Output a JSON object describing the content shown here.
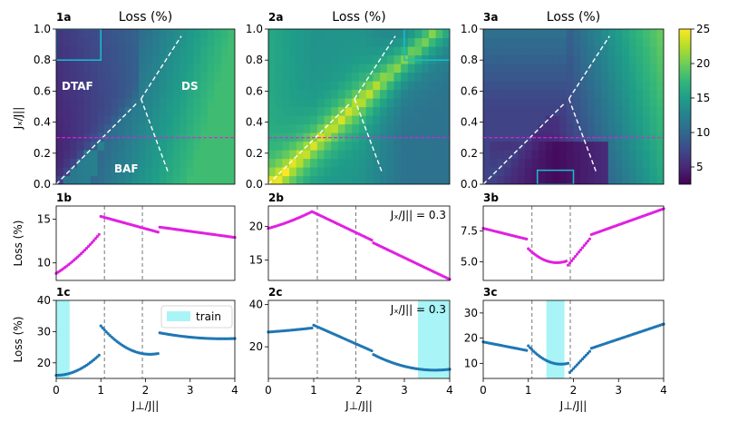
{
  "colors": {
    "magenta": "#e020e0",
    "blue": "#1f77b4",
    "cyan": "#17becf",
    "train": "#a8f4f6",
    "viridis": [
      "#440154",
      "#482878",
      "#3e4a89",
      "#31688e",
      "#26828e",
      "#1f9e89",
      "#35b779",
      "#6ece58",
      "#b5de2b",
      "#fde725"
    ]
  },
  "chart_data": {
    "type": "heatmap",
    "colorbar": {
      "min": 2.5,
      "max": 25,
      "ticks": [
        "5",
        "10",
        "15",
        "20",
        "25"
      ]
    },
    "heatmap_xlim": [
      0,
      4
    ],
    "heatmap_ylim": [
      0,
      1.0
    ],
    "heatmap_yticks": [
      "0.0",
      "0.2",
      "0.4",
      "0.6",
      "0.8",
      "1.0"
    ],
    "heatmap_ylabel": "Jₓ/J||",
    "cut_line_y": 0.3,
    "regions": [
      "DTAF",
      "DS",
      "BAF"
    ],
    "panels_a": [
      {
        "label": "1a",
        "title": "Loss (%)",
        "train_box": [
          0,
          0.8,
          1,
          1.0
        ]
      },
      {
        "label": "2a",
        "title": "Loss (%)",
        "train_box": [
          3.0,
          0.8,
          4.0,
          1.0
        ]
      },
      {
        "label": "3a",
        "title": "Loss (%)",
        "train_box": [
          1.2,
          0.0,
          2.0,
          0.09
        ]
      }
    ],
    "panels_b": [
      {
        "label": "1b",
        "ylabel": "Loss (%)",
        "ylim": [
          8,
          16.5
        ],
        "yticks": [
          "10",
          "15"
        ],
        "ytick_values": [
          10,
          15
        ],
        "annotation": ""
      },
      {
        "label": "2b",
        "ylabel": "",
        "ylim": [
          12,
          23
        ],
        "yticks": [
          "15",
          "20"
        ],
        "ytick_values": [
          15,
          20
        ],
        "annotation": "Jₓ/J|| = 0.3"
      },
      {
        "label": "3b",
        "ylabel": "",
        "ylim": [
          3.5,
          9.5
        ],
        "yticks": [
          "5.0",
          "7.5"
        ],
        "ytick_values": [
          5.0,
          7.5
        ],
        "annotation": ""
      }
    ],
    "panels_c": [
      {
        "label": "1c",
        "ylabel": "Loss (%)",
        "ylim": [
          15,
          40
        ],
        "yticks": [
          "20",
          "30",
          "40"
        ],
        "ytick_values": [
          20,
          30,
          40
        ],
        "train": [
          0,
          0.3
        ],
        "legend": "train",
        "annotation": ""
      },
      {
        "label": "2c",
        "ylabel": "",
        "ylim": [
          5,
          42
        ],
        "yticks": [
          "20",
          "40"
        ],
        "ytick_values": [
          20,
          40
        ],
        "train": [
          3.3,
          4.0
        ],
        "legend": "",
        "annotation": "Jₓ/J|| = 0.3"
      },
      {
        "label": "3c",
        "ylabel": "",
        "ylim": [
          4,
          35
        ],
        "yticks": [
          "10",
          "20",
          "30"
        ],
        "ytick_values": [
          10,
          20,
          30
        ],
        "train": [
          1.4,
          1.8
        ],
        "legend": "",
        "annotation": ""
      }
    ],
    "x_ticks": [
      "0",
      "1",
      "2",
      "3",
      "4"
    ],
    "xlabel": "J⊥/J||",
    "transitions_x": [
      1.08,
      1.93
    ]
  }
}
